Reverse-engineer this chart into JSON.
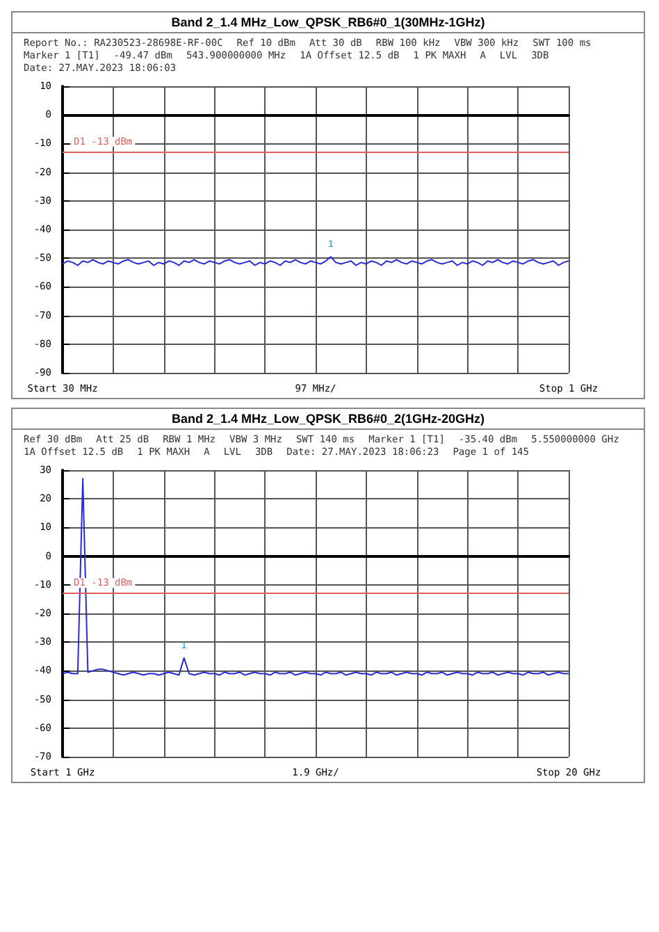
{
  "chart_data": [
    {
      "type": "line",
      "title": "Band 2_1.4 MHz_Low_QPSK_RB6#0_1(30MHz-1GHz)",
      "marker": "none",
      "grid": true,
      "annotations": [
        "Report No.: RA230523-28698E-RF-00C",
        "Ref 10 dBm",
        "Att 30 dB",
        "RBW 100 kHz",
        "VBW 300 kHz",
        "SWT 100 ms",
        "Marker 1 [T1]",
        "-49.47 dBm",
        "543.900000000 MHz",
        "1A Offset 12.5 dB",
        "1 PK MAXH",
        "A",
        "LVL",
        "3DB",
        "Date: 27.MAY.2023 18:06:03",
        {
          "text": "1",
          "y": -49.5
        }
      ],
      "categories": [
        "Start 30 MHz",
        null,
        null,
        null,
        null,
        null,
        null,
        null,
        null,
        null,
        null,
        null,
        null,
        null,
        null,
        null,
        null,
        null,
        null,
        null,
        null,
        null,
        null,
        null,
        null,
        null,
        null,
        null,
        null,
        null,
        null,
        null,
        null,
        null,
        null,
        null,
        null,
        null,
        null,
        null,
        null,
        null,
        null,
        null,
        null,
        null,
        null,
        null,
        null,
        null,
        "97 MHz/",
        null,
        null,
        null,
        null,
        null,
        null,
        null,
        null,
        null,
        null,
        null,
        null,
        null,
        null,
        null,
        null,
        null,
        null,
        null,
        null,
        null,
        null,
        null,
        null,
        null,
        null,
        null,
        null,
        null,
        null,
        null,
        null,
        null,
        null,
        null,
        null,
        null,
        null,
        null,
        null,
        null,
        null,
        null,
        null,
        null,
        null,
        null,
        null,
        null,
        "Stop 1 GHz"
      ],
      "ylim": [
        -90,
        10
      ],
      "yticks": [
        10,
        0,
        -10,
        -20,
        -30,
        -40,
        -50,
        -60,
        -70,
        -80,
        -90
      ],
      "ref_lines": [
        {
          "axis": "y",
          "value": -13,
          "label": "D1 -13 dBm",
          "color": "#e06060"
        }
      ],
      "series": [
        {
          "color": "#2a2ad8",
          "values": [
            -52,
            -51,
            -51.5,
            -52.5,
            -51,
            -51.5,
            -50.5,
            -51.5,
            -52,
            -51,
            -51.5,
            -52,
            -51,
            -50.5,
            -51.5,
            -52,
            -51.5,
            -51,
            -52.5,
            -51.5,
            -52,
            -51,
            -51.5,
            -52.5,
            -51,
            -51.5,
            -50.5,
            -51.5,
            -52,
            -51,
            -51.5,
            -52,
            -51,
            -50.5,
            -51.5,
            -52,
            -51.5,
            -51,
            -52.5,
            -51.5,
            -52,
            -51,
            -51.5,
            -52.5,
            -51,
            -51.5,
            -50.5,
            -51.5,
            -52,
            -51,
            -51.5,
            -52,
            -51,
            -49.5,
            -51.5,
            -52,
            -51.5,
            -51,
            -52.5,
            -51.5,
            -52,
            -51,
            -51.5,
            -52.5,
            -51,
            -51.5,
            -50.5,
            -51.5,
            -52,
            -51,
            -51.5,
            -52,
            -51,
            -50.5,
            -51.5,
            -52,
            -51.5,
            -51,
            -52.5,
            -51.5,
            -52,
            -51,
            -51.5,
            -52.5,
            -51,
            -51.5,
            -50.5,
            -51.5,
            -52,
            -51,
            -51.5,
            -52,
            -51,
            -50.5,
            -51.5,
            -52,
            -51.5,
            -51,
            -52.5,
            -51.5,
            -51
          ]
        }
      ]
    },
    {
      "type": "line",
      "title": "Band 2_1.4 MHz_Low_QPSK_RB6#0_2(1GHz-20GHz)",
      "marker": "none",
      "grid": true,
      "annotations": [
        "Ref 30 dBm",
        "Att 25 dB",
        "RBW 1 MHz",
        "VBW 3 MHz",
        "SWT 140 ms",
        "Marker 1 [T1]",
        "-35.40 dBm",
        "5.550000000 GHz",
        "1A Offset 12.5 dB",
        "1 PK MAXH",
        "A",
        "LVL",
        "3DB",
        "Date: 27.MAY.2023 18:06:23",
        "Page 1 of 145",
        {
          "text": "1",
          "y": -35.5
        }
      ],
      "categories": [
        "Start 1 GHz",
        null,
        null,
        null,
        null,
        null,
        null,
        null,
        null,
        null,
        null,
        null,
        null,
        null,
        null,
        null,
        null,
        null,
        null,
        null,
        null,
        null,
        null,
        null,
        null,
        null,
        null,
        null,
        null,
        null,
        null,
        null,
        null,
        null,
        null,
        null,
        null,
        null,
        null,
        null,
        null,
        null,
        null,
        null,
        null,
        null,
        null,
        null,
        null,
        null,
        "1.9 GHz/",
        null,
        null,
        null,
        null,
        null,
        null,
        null,
        null,
        null,
        null,
        null,
        null,
        null,
        null,
        null,
        null,
        null,
        null,
        null,
        null,
        null,
        null,
        null,
        null,
        null,
        null,
        null,
        null,
        null,
        null,
        null,
        null,
        null,
        null,
        null,
        null,
        null,
        null,
        null,
        null,
        null,
        null,
        null,
        null,
        null,
        null,
        null,
        null,
        null,
        "Stop 20 GHz"
      ],
      "ylim": [
        -70,
        30
      ],
      "yticks": [
        30,
        20,
        10,
        0,
        -10,
        -20,
        -30,
        -40,
        -50,
        -60,
        -70
      ],
      "ref_lines": [
        {
          "axis": "y",
          "value": -13,
          "label": "D1 -13 dBm",
          "color": "#e06060"
        }
      ],
      "series": [
        {
          "color": "#2a2ad8",
          "values": [
            -41,
            -40.5,
            -41,
            -41,
            27,
            -40.5,
            -40,
            -39.5,
            -39.5,
            -40,
            -40.5,
            -41,
            -41.5,
            -41,
            -40.5,
            -41,
            -41.5,
            -41,
            -41,
            -41.5,
            -41,
            -40.5,
            -41,
            -41.5,
            -35.5,
            -41,
            -41.5,
            -41,
            -40.5,
            -41,
            -41,
            -41.5,
            -40.5,
            -41,
            -41,
            -40.5,
            -41.5,
            -41,
            -40.5,
            -41,
            -41,
            -41.5,
            -40.5,
            -41,
            -41,
            -40.5,
            -41.5,
            -41,
            -40.5,
            -41,
            -41,
            -41.5,
            -40.5,
            -41,
            -41,
            -40.5,
            -41.5,
            -41,
            -40.5,
            -41,
            -41,
            -41.5,
            -40.5,
            -41,
            -41,
            -40.5,
            -41.5,
            -41,
            -40.5,
            -41,
            -41,
            -41.5,
            -40.5,
            -41,
            -41,
            -40.5,
            -41.5,
            -41,
            -40.5,
            -41,
            -41,
            -41.5,
            -40.5,
            -41,
            -41,
            -40.5,
            -41.5,
            -41,
            -40.5,
            -41,
            -41,
            -41.5,
            -40.5,
            -41,
            -41,
            -40.5,
            -41.5,
            -41,
            -40.5,
            -41,
            -41
          ]
        }
      ]
    }
  ]
}
